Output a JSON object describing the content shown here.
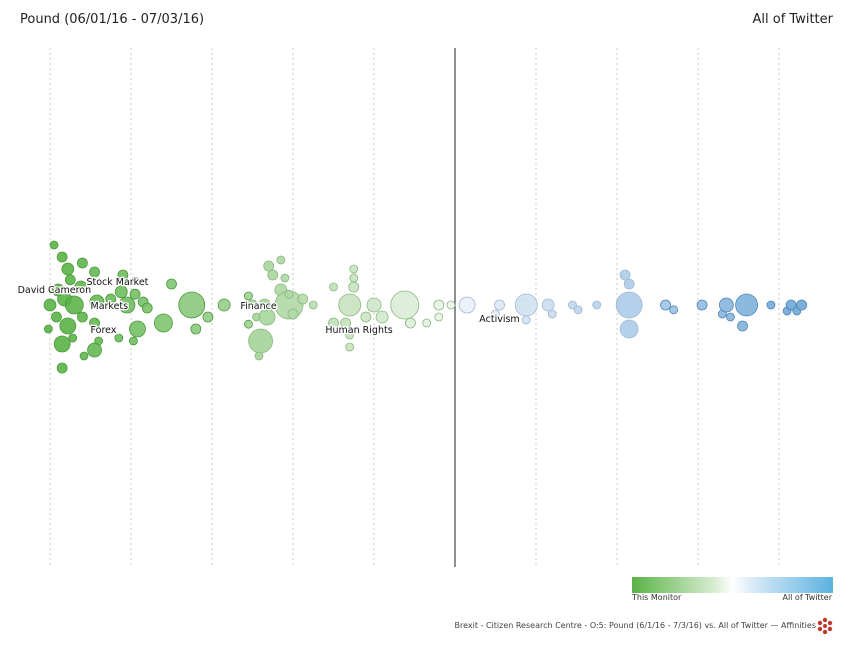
{
  "header": {
    "title": "Pound (06/01/16 - 07/03/16)",
    "comparison": "All of Twitter"
  },
  "legend": {
    "left_label": "This Monitor",
    "right_label": "All of Twitter"
  },
  "footer": {
    "caption": "Brexit - Citizen Research Centre - O:5: Pound (6/1/16 - 7/3/16) vs. All of Twitter — Affinities"
  },
  "colors": {
    "monitor": "#5ab347",
    "twitter": "#5f9fd6",
    "neutral": "#ffffff",
    "logo": "#c0392b"
  },
  "chart_data": {
    "type": "scatter",
    "x_axis": {
      "range": [
        -5,
        4
      ],
      "gridlines": 10,
      "center_line": 0
    },
    "labels": [
      {
        "text": "Stock Market",
        "x": -4.55,
        "y": 0.4
      },
      {
        "text": "David Cameron",
        "x": -5.4,
        "y": 0.27
      },
      {
        "text": "Markets",
        "x": -4.5,
        "y": 0.0
      },
      {
        "text": "Finance",
        "x": -2.65,
        "y": 0.0
      },
      {
        "text": "Forex",
        "x": -4.5,
        "y": -0.4
      },
      {
        "text": "Human Rights",
        "x": -1.6,
        "y": -0.4
      },
      {
        "text": "Activism",
        "x": 0.3,
        "y": -0.22
      }
    ],
    "points": [
      [
        -4.95,
        1.0,
        4
      ],
      [
        -4.85,
        0.8,
        5
      ],
      [
        -4.78,
        0.6,
        6
      ],
      [
        -4.6,
        0.7,
        5
      ],
      [
        -4.45,
        0.55,
        5
      ],
      [
        -4.75,
        0.42,
        5
      ],
      [
        -4.62,
        0.3,
        6
      ],
      [
        -4.9,
        0.25,
        6
      ],
      [
        -4.82,
        0.1,
        7
      ],
      [
        -5.0,
        0.0,
        6
      ],
      [
        -4.7,
        0.0,
        9
      ],
      [
        -4.42,
        0.05,
        7
      ],
      [
        -4.25,
        0.1,
        5
      ],
      [
        -4.92,
        -0.2,
        5
      ],
      [
        -4.78,
        -0.35,
        8
      ],
      [
        -5.02,
        -0.4,
        4
      ],
      [
        -4.45,
        -0.3,
        5
      ],
      [
        -4.6,
        -0.2,
        5
      ],
      [
        -4.72,
        -0.55,
        4
      ],
      [
        -4.4,
        -0.6,
        4
      ],
      [
        -4.85,
        -0.65,
        8
      ],
      [
        -4.45,
        -0.75,
        7
      ],
      [
        -4.58,
        -0.85,
        4
      ],
      [
        -4.85,
        -1.05,
        5
      ],
      [
        -4.1,
        0.5,
        5
      ],
      [
        -3.95,
        0.4,
        4
      ],
      [
        -3.95,
        0.18,
        5
      ],
      [
        -4.12,
        0.22,
        6
      ],
      [
        -3.85,
        0.05,
        5
      ],
      [
        -4.05,
        0.0,
        8
      ],
      [
        -3.8,
        -0.05,
        5
      ],
      [
        -3.92,
        -0.4,
        8
      ],
      [
        -4.15,
        -0.55,
        4
      ],
      [
        -3.97,
        -0.6,
        4
      ],
      [
        -3.6,
        -0.3,
        9
      ],
      [
        -3.5,
        0.35,
        5
      ],
      [
        -3.25,
        0.0,
        13
      ],
      [
        -3.2,
        -0.4,
        5
      ],
      [
        -3.05,
        -0.2,
        5
      ],
      [
        -2.85,
        0.0,
        6
      ],
      [
        -2.55,
        0.15,
        4
      ],
      [
        -2.5,
        0.0,
        5
      ],
      [
        -2.45,
        -0.2,
        4
      ],
      [
        -2.55,
        -0.32,
        4
      ],
      [
        -2.32,
        -0.2,
        8
      ],
      [
        -2.4,
        -0.6,
        12
      ],
      [
        -2.42,
        -0.85,
        4
      ],
      [
        -2.3,
        0.65,
        5
      ],
      [
        -2.25,
        0.5,
        5
      ],
      [
        -2.1,
        0.45,
        4
      ],
      [
        -2.15,
        0.75,
        4
      ],
      [
        -2.15,
        0.25,
        6
      ],
      [
        -2.35,
        0.0,
        6
      ],
      [
        -2.05,
        0.0,
        14
      ],
      [
        -2.05,
        0.18,
        4
      ],
      [
        -2.0,
        -0.15,
        5
      ],
      [
        -1.88,
        0.1,
        5
      ],
      [
        -1.75,
        0.0,
        4
      ],
      [
        -1.5,
        0.3,
        4
      ],
      [
        -1.25,
        0.6,
        4
      ],
      [
        -1.25,
        0.45,
        4
      ],
      [
        -1.5,
        -0.3,
        5
      ],
      [
        -1.25,
        0.3,
        5
      ],
      [
        -1.3,
        0.0,
        11
      ],
      [
        -1.35,
        -0.3,
        5
      ],
      [
        -1.3,
        -0.5,
        4
      ],
      [
        -1.3,
        -0.7,
        4
      ],
      [
        -1.1,
        -0.2,
        5
      ],
      [
        -1.0,
        0.0,
        7
      ],
      [
        -0.9,
        -0.2,
        6
      ],
      [
        -0.62,
        0.0,
        14
      ],
      [
        -0.55,
        -0.3,
        5
      ],
      [
        -0.35,
        -0.3,
        4
      ],
      [
        -0.2,
        0.0,
        5
      ],
      [
        -0.2,
        -0.2,
        4
      ],
      [
        -0.05,
        0.0,
        4
      ],
      [
        0.15,
        0.0,
        8
      ],
      [
        0.55,
        0.0,
        5
      ],
      [
        0.85,
        0.0,
        6
      ],
      [
        0.5,
        -0.15,
        4
      ],
      [
        0.88,
        0.0,
        11
      ],
      [
        0.88,
        -0.25,
        4
      ],
      [
        1.15,
        0.0,
        6
      ],
      [
        1.2,
        -0.15,
        4
      ],
      [
        1.45,
        0.0,
        4
      ],
      [
        1.52,
        -0.08,
        4
      ],
      [
        1.75,
        0.0,
        4
      ],
      [
        2.1,
        0.5,
        5
      ],
      [
        2.15,
        0.35,
        5
      ],
      [
        2.15,
        0.0,
        13
      ],
      [
        2.15,
        -0.4,
        9
      ],
      [
        2.6,
        0.0,
        5
      ],
      [
        2.7,
        -0.08,
        4
      ],
      [
        3.05,
        0.0,
        5
      ],
      [
        3.3,
        -0.15,
        4
      ],
      [
        3.35,
        0.0,
        7
      ],
      [
        3.4,
        -0.2,
        4
      ],
      [
        3.6,
        0.0,
        11
      ],
      [
        3.55,
        -0.35,
        5
      ],
      [
        3.9,
        0.0,
        4
      ],
      [
        4.1,
        -0.1,
        4
      ],
      [
        4.15,
        0.0,
        5
      ],
      [
        4.22,
        -0.1,
        4
      ],
      [
        4.28,
        0.0,
        5
      ]
    ]
  }
}
